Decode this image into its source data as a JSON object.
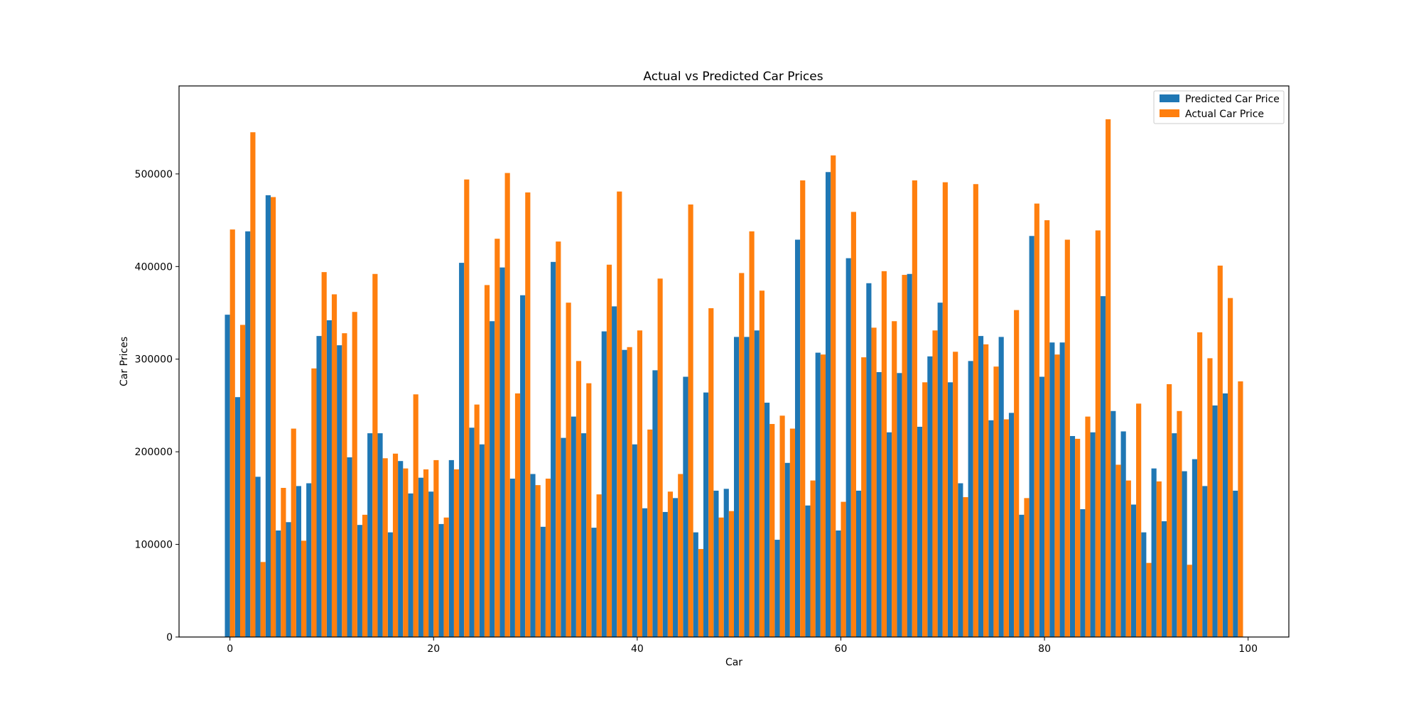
{
  "chart_data": {
    "type": "bar",
    "title": "Actual vs Predicted Car Prices",
    "xlabel": "Car",
    "ylabel": "Car Prices",
    "xlim": [
      -5,
      104
    ],
    "ylim": [
      0,
      595000
    ],
    "xticks": [
      0,
      20,
      40,
      60,
      80,
      100
    ],
    "yticks": [
      0,
      100000,
      200000,
      300000,
      400000,
      500000
    ],
    "xtick_labels": [
      "0",
      "20",
      "40",
      "60",
      "80",
      "100"
    ],
    "ytick_labels": [
      "0",
      "100000",
      "200000",
      "300000",
      "400000",
      "500000"
    ],
    "grid": false,
    "legend_position": "top-right",
    "x": [
      0,
      1,
      2,
      3,
      4,
      5,
      6,
      7,
      8,
      9,
      10,
      11,
      12,
      13,
      14,
      15,
      16,
      17,
      18,
      19,
      20,
      21,
      22,
      23,
      24,
      25,
      26,
      27,
      28,
      29,
      30,
      31,
      32,
      33,
      34,
      35,
      36,
      37,
      38,
      39,
      40,
      41,
      42,
      43,
      44,
      45,
      46,
      47,
      48,
      49,
      50,
      51,
      52,
      53,
      54,
      55,
      56,
      57,
      58,
      59,
      60,
      61,
      62,
      63,
      64,
      65,
      66,
      67,
      68,
      69,
      70,
      71,
      72,
      73,
      74,
      75,
      76,
      77,
      78,
      79,
      80,
      81,
      82,
      83,
      84,
      85,
      86,
      87,
      88,
      89,
      90,
      91,
      92,
      93,
      94,
      95,
      96,
      97,
      98,
      99
    ],
    "series": [
      {
        "name": "Predicted Car Price",
        "color": "#1f77b4",
        "values": [
          348000,
          259000,
          438000,
          173000,
          477000,
          115000,
          124000,
          163000,
          166000,
          325000,
          342000,
          315000,
          194000,
          121000,
          220000,
          220000,
          113000,
          190000,
          155000,
          172000,
          157000,
          122000,
          191000,
          404000,
          226000,
          208000,
          341000,
          399000,
          171000,
          369000,
          176000,
          119000,
          405000,
          215000,
          238000,
          220000,
          118000,
          330000,
          357000,
          310000,
          208000,
          139000,
          288000,
          135000,
          150000,
          281000,
          113000,
          264000,
          158000,
          160000,
          324000,
          324000,
          331000,
          253000,
          105000,
          188000,
          429000,
          142000,
          307000,
          502000,
          115000,
          409000,
          158000,
          382000,
          286000,
          221000,
          285000,
          392000,
          227000,
          303000,
          361000,
          275000,
          166000,
          298000,
          325000,
          234000,
          324000,
          242000,
          132000,
          433000,
          281000,
          318000,
          318000,
          217000,
          138000,
          221000,
          368000,
          244000,
          222000,
          143000,
          113000,
          182000,
          125000,
          220000,
          179000,
          192000,
          163000,
          250000,
          263000,
          158000
        ]
      },
      {
        "name": "Actual Car Price",
        "color": "#ff7f0e",
        "values": [
          440000,
          337000,
          545000,
          81000,
          475000,
          161000,
          225000,
          104000,
          290000,
          394000,
          370000,
          328000,
          351000,
          132000,
          392000,
          193000,
          198000,
          182000,
          262000,
          181000,
          191000,
          129000,
          181000,
          494000,
          251000,
          380000,
          430000,
          501000,
          263000,
          480000,
          164000,
          171000,
          427000,
          361000,
          298000,
          274000,
          154000,
          402000,
          481000,
          313000,
          331000,
          224000,
          387000,
          157000,
          176000,
          467000,
          95000,
          355000,
          129000,
          136000,
          393000,
          438000,
          374000,
          230000,
          239000,
          225000,
          493000,
          169000,
          305000,
          520000,
          146000,
          459000,
          302000,
          334000,
          395000,
          341000,
          391000,
          493000,
          275000,
          331000,
          491000,
          308000,
          151000,
          489000,
          316000,
          292000,
          235000,
          353000,
          150000,
          468000,
          450000,
          305000,
          429000,
          214000,
          238000,
          439000,
          559000,
          186000,
          169000,
          252000,
          80000,
          168000,
          273000,
          244000,
          78000,
          329000,
          301000,
          401000,
          366000,
          276000
        ]
      }
    ]
  }
}
